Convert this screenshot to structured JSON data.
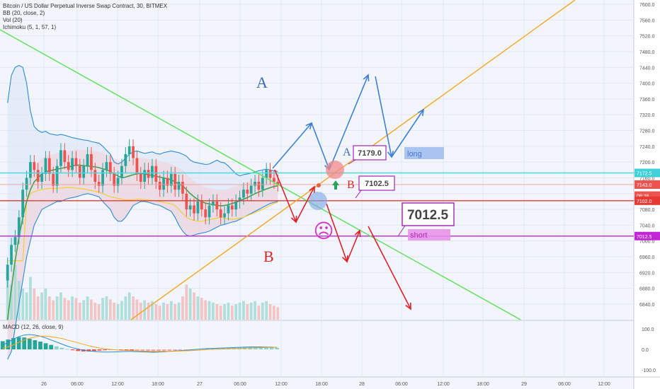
{
  "header": {
    "title": "Bitcoin / US Dollar Perpetual Inverse Swap Contract, 30, BITMEX",
    "indicators": [
      "BB (20, close, 2)",
      "Vol (20)",
      "Ichimoku (5, 1, 57, 1)"
    ]
  },
  "macd": {
    "label": "MACD (12, 26, close, 9)",
    "ticks": [
      "100.0",
      "0.0",
      "-100.0"
    ]
  },
  "annotations": {
    "letter_a_top": "A",
    "letter_b_bottom": "B",
    "letter_a_small": "A",
    "letter_b_small": "B",
    "badge_7179": "7179.0",
    "badge_7102": "7102.5",
    "badge_7012": "7012.5",
    "label_long": "long",
    "label_short": "short",
    "sad_face": "☹"
  },
  "price_tags": [
    {
      "value": 7172.5,
      "text": "7172.5",
      "color": "#3fd0d8"
    },
    {
      "value": 7143.0,
      "text": "7143.0",
      "color": "#ef5350"
    },
    {
      "value": 7115.0,
      "text": "08:36",
      "color": "#ef5350"
    },
    {
      "value": 7102.0,
      "text": "7102.0",
      "color": "#e53935"
    },
    {
      "value": 7012.5,
      "text": "7012.5",
      "color": "#c026d3"
    }
  ],
  "chart_data": {
    "type": "candlestick",
    "symbol": "XBTUSD",
    "interval": "30",
    "exchange": "BITMEX",
    "y_range": [
      6800,
      7640
    ],
    "y_ticks": [
      7600,
      7560,
      7520,
      7480,
      7440,
      7400,
      7360,
      7320,
      7280,
      7240,
      7200,
      7160,
      7120,
      7080,
      7040,
      7000,
      6960,
      6920,
      6880,
      6840
    ],
    "x_ticks": [
      "26",
      "06:00",
      "12:00",
      "18:00",
      "27",
      "06:00",
      "12:00",
      "18:00",
      "28",
      "06:00",
      "12:00",
      "18:00",
      "29",
      "06:00",
      "12:00"
    ],
    "horizontal_levels": [
      {
        "name": "cyan",
        "value": 7172.5,
        "color": "#4dd8e0"
      },
      {
        "name": "red",
        "value": 7102.0,
        "color": "#e53935"
      },
      {
        "name": "purple",
        "value": 7012.5,
        "color": "#c026d3"
      },
      {
        "name": "thin-red",
        "value": 7143.0,
        "color": "#ef9a9a"
      }
    ],
    "closes": [
      6940,
      6990,
      7010,
      7060,
      7130,
      7160,
      7200,
      7180,
      7150,
      7170,
      7210,
      7170,
      7140,
      7190,
      7230,
      7200,
      7180,
      7210,
      7190,
      7160,
      7190,
      7220,
      7180,
      7150,
      7140,
      7180,
      7200,
      7170,
      7140,
      7160,
      7190,
      7220,
      7240,
      7210,
      7170,
      7150,
      7180,
      7160,
      7190,
      7150,
      7130,
      7160,
      7140,
      7170,
      7130,
      7150,
      7120,
      7080,
      7090,
      7070,
      7100,
      7080,
      7060,
      7090,
      7100,
      7080,
      7060,
      7070,
      7090,
      7080,
      7100,
      7110,
      7130,
      7120,
      7140,
      7150,
      7130,
      7160,
      7180,
      7160,
      7150,
      7143
    ],
    "opens": [
      6900,
      6940,
      6990,
      7010,
      7060,
      7130,
      7160,
      7200,
      7180,
      7150,
      7170,
      7210,
      7170,
      7140,
      7190,
      7230,
      7200,
      7180,
      7210,
      7190,
      7160,
      7190,
      7220,
      7180,
      7150,
      7140,
      7180,
      7200,
      7170,
      7140,
      7160,
      7190,
      7220,
      7240,
      7210,
      7170,
      7150,
      7180,
      7160,
      7190,
      7150,
      7130,
      7160,
      7140,
      7170,
      7130,
      7150,
      7120,
      7080,
      7090,
      7070,
      7100,
      7080,
      7060,
      7090,
      7100,
      7080,
      7060,
      7070,
      7090,
      7080,
      7100,
      7110,
      7130,
      7120,
      7140,
      7150,
      7130,
      7160,
      7180,
      7160,
      7150
    ],
    "bb_upper": [
      7350,
      7420,
      7440,
      7445,
      7440,
      7400,
      7330,
      7290,
      7280,
      7275,
      7278,
      7272,
      7270,
      7268,
      7270,
      7268,
      7265,
      7262,
      7260,
      7258,
      7256,
      7255,
      7252,
      7250,
      7248,
      7240,
      7230,
      7220,
      7200,
      7195,
      7200,
      7210,
      7220,
      7226,
      7228,
      7225,
      7222,
      7224,
      7226,
      7222,
      7220,
      7224,
      7226,
      7228,
      7226,
      7224,
      7220,
      7215,
      7205,
      7200,
      7198,
      7196,
      7194,
      7195,
      7200,
      7205,
      7200,
      7198,
      7190,
      7180,
      7170,
      7165,
      7168,
      7170,
      7172,
      7175,
      7178,
      7180,
      7182,
      7180,
      7178,
      7176
    ],
    "bb_lower": [
      6700,
      6720,
      6780,
      6840,
      6900,
      6960,
      7000,
      7040,
      7060,
      7080,
      7085,
      7090,
      7095,
      7100,
      7100,
      7105,
      7108,
      7110,
      7112,
      7115,
      7118,
      7120,
      7118,
      7115,
      7112,
      7100,
      7090,
      7080,
      7060,
      7050,
      7050,
      7060,
      7075,
      7090,
      7095,
      7100,
      7100,
      7098,
      7095,
      7092,
      7090,
      7085,
      7080,
      7075,
      7060,
      7040,
      7025,
      7015,
      7012,
      7015,
      7018,
      7020,
      7022,
      7025,
      7030,
      7035,
      7040,
      7042,
      7045,
      7048,
      7050,
      7055,
      7060,
      7065,
      7070,
      7075,
      7080,
      7085,
      7090,
      7095,
      7098,
      7100
    ],
    "ma_green": [
      6800,
      6880,
      6950,
      7010,
      7060,
      7100,
      7130,
      7150,
      7160,
      7170,
      7175,
      7178,
      7180,
      7182,
      7184,
      7186,
      7188,
      7190,
      7192,
      7192,
      7191,
      7190,
      7189,
      7188,
      7186,
      7183,
      7180,
      7176,
      7170,
      7165,
      7160,
      7162,
      7165,
      7168,
      7170,
      7172,
      7170,
      7168,
      7166,
      7164,
      7162,
      7160,
      7158,
      7155,
      7150,
      7145,
      7140,
      7130,
      7120,
      7112,
      7105,
      7100,
      7096,
      7094,
      7092,
      7090,
      7089,
      7090,
      7092,
      7095,
      7098,
      7102,
      7106,
      7110,
      7115,
      7120,
      7124,
      7128,
      7132,
      7135,
      7138,
      7140
    ],
    "ma_yellow": [
      6950,
      6950,
      6950,
      6950,
      6950,
      7100,
      7120,
      7125,
      7128,
      7130,
      7132,
      7133,
      7133,
      7134,
      7134,
      7135,
      7135,
      7135,
      7134,
      7133,
      7132,
      7130,
      7128,
      7126,
      7124,
      7120,
      7116,
      7112,
      7110,
      7108,
      7106,
      7104,
      7104,
      7105,
      7106,
      7106,
      7105,
      7104,
      7103,
      7102,
      7100,
      7098,
      7096,
      7094,
      7090,
      7080,
      7070,
      7060,
      7055,
      7052,
      7050,
      7050,
      7052,
      7054,
      7056,
      7058,
      7060,
      7058,
      7056,
      7055,
      7056,
      7058,
      7060,
      7064,
      7068,
      7072,
      7076,
      7080,
      7085,
      7090,
      7095,
      7098
    ],
    "volume": [
      60,
      45,
      70,
      50,
      40,
      35,
      55,
      40,
      30,
      35,
      40,
      30,
      25,
      30,
      35,
      28,
      25,
      30,
      28,
      22,
      25,
      30,
      26,
      22,
      20,
      28,
      30,
      26,
      22,
      20,
      24,
      30,
      35,
      30,
      26,
      22,
      25,
      22,
      24,
      20,
      18,
      22,
      20,
      24,
      20,
      22,
      30,
      45,
      40,
      35,
      30,
      28,
      25,
      24,
      22,
      20,
      18,
      20,
      22,
      18,
      20,
      22,
      24,
      20,
      22,
      24,
      18,
      22,
      24,
      20,
      18,
      16
    ],
    "macd_hist": [
      40,
      48,
      55,
      60,
      58,
      52,
      45,
      38,
      30,
      22,
      15,
      8,
      2,
      -4,
      -8,
      -10,
      -10,
      -8,
      -6,
      -4,
      -2,
      0,
      -2,
      -4,
      -6,
      -8,
      -10,
      -12,
      -14,
      -12,
      -10,
      -8,
      -6,
      -4,
      -2,
      0,
      2,
      3,
      4,
      5,
      6,
      7,
      8,
      9,
      10,
      11,
      12,
      12,
      11,
      10,
      9,
      8
    ],
    "macd_line": [
      20,
      35,
      50,
      62,
      70,
      72,
      70,
      64,
      56,
      46,
      36,
      26,
      16,
      8,
      2,
      -4,
      -8,
      -10,
      -12,
      -13,
      -13,
      -12,
      -11,
      -10,
      -10,
      -11,
      -12,
      -13,
      -14,
      -13,
      -12,
      -10,
      -8,
      -6,
      -4,
      -2,
      0,
      2,
      4,
      5,
      6,
      7,
      8,
      9,
      10,
      11,
      12,
      12,
      12,
      11,
      11,
      10
    ],
    "signal_line": [
      5,
      12,
      22,
      34,
      46,
      55,
      61,
      64,
      64,
      62,
      58,
      53,
      46,
      39,
      32,
      25,
      18,
      12,
      7,
      3,
      0,
      -2,
      -4,
      -5,
      -6,
      -7,
      -8,
      -9,
      -10,
      -10,
      -10,
      -10,
      -9,
      -8,
      -7,
      -6,
      -5,
      -3,
      -1,
      0,
      1,
      2,
      3,
      4,
      5,
      6,
      7,
      8,
      9,
      9,
      10,
      10
    ],
    "trendlines": [
      {
        "name": "green-descending",
        "color": "#5be05b",
        "from": [
          "0",
          7610
        ],
        "to": [
          "29",
          6800
        ]
      },
      {
        "name": "orange-ascending",
        "color": "#f5a623",
        "from": [
          "27",
          6800
        ],
        "to": [
          "29 06:00",
          7640
        ]
      }
    ]
  }
}
